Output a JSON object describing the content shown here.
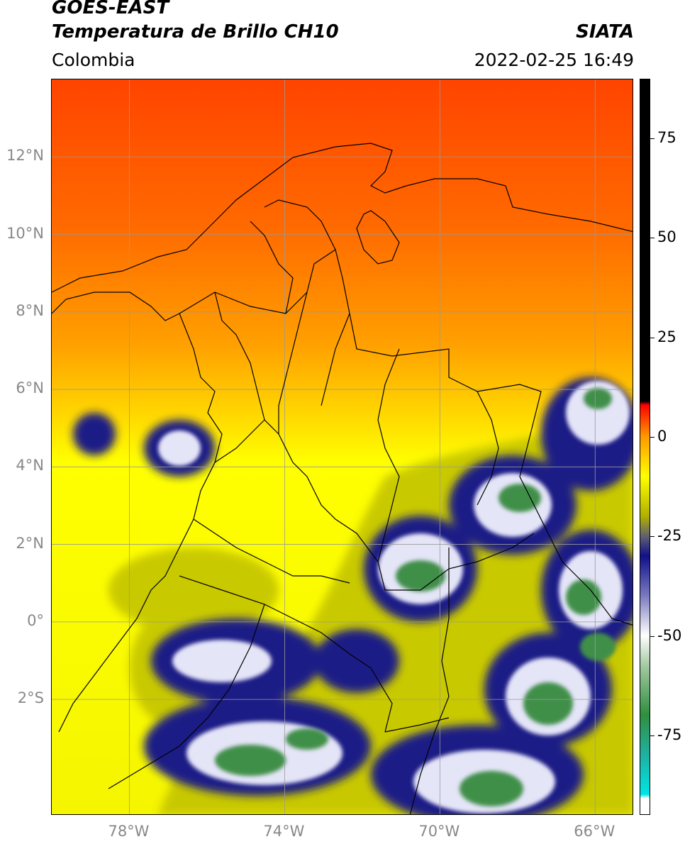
{
  "header": {
    "satellite": "GOES-EAST",
    "product": "Temperatura de Brillo CH10",
    "region": "Colombia",
    "agency": "SIATA",
    "datetime": "2022-02-25 16:49"
  },
  "map": {
    "extent": {
      "lon_min": -80,
      "lon_max": -65,
      "lat_min": -5,
      "lat_max": 14
    },
    "lat_ticks": [
      {
        "value": 12,
        "label": "12°N"
      },
      {
        "value": 10,
        "label": "10°N"
      },
      {
        "value": 8,
        "label": "8°N"
      },
      {
        "value": 6,
        "label": "6°N"
      },
      {
        "value": 4,
        "label": "4°N"
      },
      {
        "value": 2,
        "label": "2°N"
      },
      {
        "value": 0,
        "label": "0°"
      },
      {
        "value": -2,
        "label": "2°S"
      }
    ],
    "lon_ticks": [
      {
        "value": -78,
        "label": "78°W"
      },
      {
        "value": -74,
        "label": "74°W"
      },
      {
        "value": -70,
        "label": "70°W"
      },
      {
        "value": -66,
        "label": "66°W"
      }
    ],
    "colors": {
      "warm_red": "#ff4a00",
      "orange": "#ff9a00",
      "yellow": "#ffff00",
      "olive": "#c8c800",
      "navy": "#101080",
      "white": "#ffffff",
      "green": "#3f8f4a",
      "grid": "#9a9a9a",
      "coast": "#000000"
    }
  },
  "colorbar": {
    "min": -95,
    "max": 90,
    "ticks": [
      {
        "value": 75,
        "label": "75"
      },
      {
        "value": 50,
        "label": "50"
      },
      {
        "value": 25,
        "label": "25"
      },
      {
        "value": 0,
        "label": "0"
      },
      {
        "value": -25,
        "label": "-25"
      },
      {
        "value": -50,
        "label": "-50"
      },
      {
        "value": -75,
        "label": "-75"
      }
    ],
    "stops": [
      {
        "value": -95,
        "color": "#ffffff"
      },
      {
        "value": -91,
        "color": "#ffffff"
      },
      {
        "value": -90,
        "color": "#00e5e5"
      },
      {
        "value": -80,
        "color": "#20b0a0"
      },
      {
        "value": -70,
        "color": "#2f8f3f"
      },
      {
        "value": -58,
        "color": "#9fc79f"
      },
      {
        "value": -50,
        "color": "#ffffff"
      },
      {
        "value": -40,
        "color": "#7a7ac0"
      },
      {
        "value": -30,
        "color": "#10108a"
      },
      {
        "value": -25,
        "color": "#606070"
      },
      {
        "value": -20,
        "color": "#b0b000"
      },
      {
        "value": -10,
        "color": "#ffff00"
      },
      {
        "value": 0,
        "color": "#ff9a00"
      },
      {
        "value": 8,
        "color": "#ff0000"
      },
      {
        "value": 9,
        "color": "#000000"
      },
      {
        "value": 90,
        "color": "#000000"
      }
    ]
  }
}
